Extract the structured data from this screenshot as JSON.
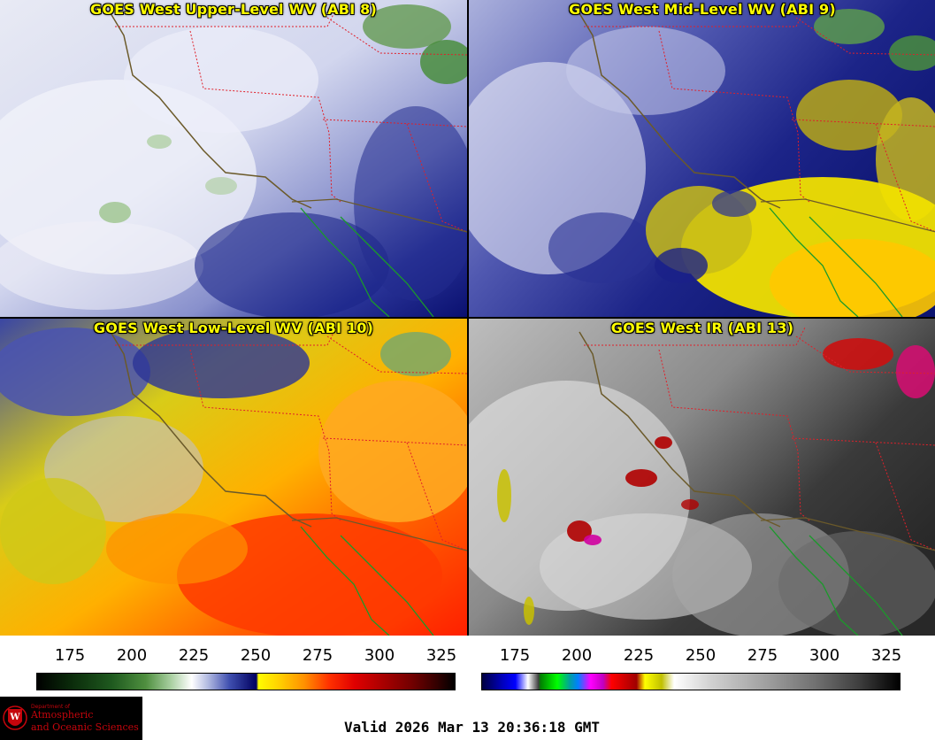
{
  "panels": [
    {
      "title": "GOES West Upper-Level WV (ABI 8)"
    },
    {
      "title": "GOES West Mid-Level WV (ABI 9)"
    },
    {
      "title": "GOES West Low-Level WV (ABI 10)"
    },
    {
      "title": "GOES West IR (ABI 13)"
    }
  ],
  "colorbars": {
    "wv": {
      "ticks": [
        "175",
        "200",
        "225",
        "250",
        "275",
        "300",
        "325"
      ]
    },
    "ir": {
      "ticks": [
        "175",
        "200",
        "225",
        "250",
        "275",
        "300",
        "325"
      ]
    }
  },
  "logo": {
    "dept": "Department of",
    "line1": "Atmospheric",
    "line2": "and Oceanic Sciences"
  },
  "valid_time": "Valid 2026 Mar 13 20:36:18 GMT",
  "colors": {
    "title_text": "#ffff00",
    "border_us": "#e0202a",
    "coastline": "#6b5a2a",
    "mexico_coast": "#1a9a2a"
  }
}
